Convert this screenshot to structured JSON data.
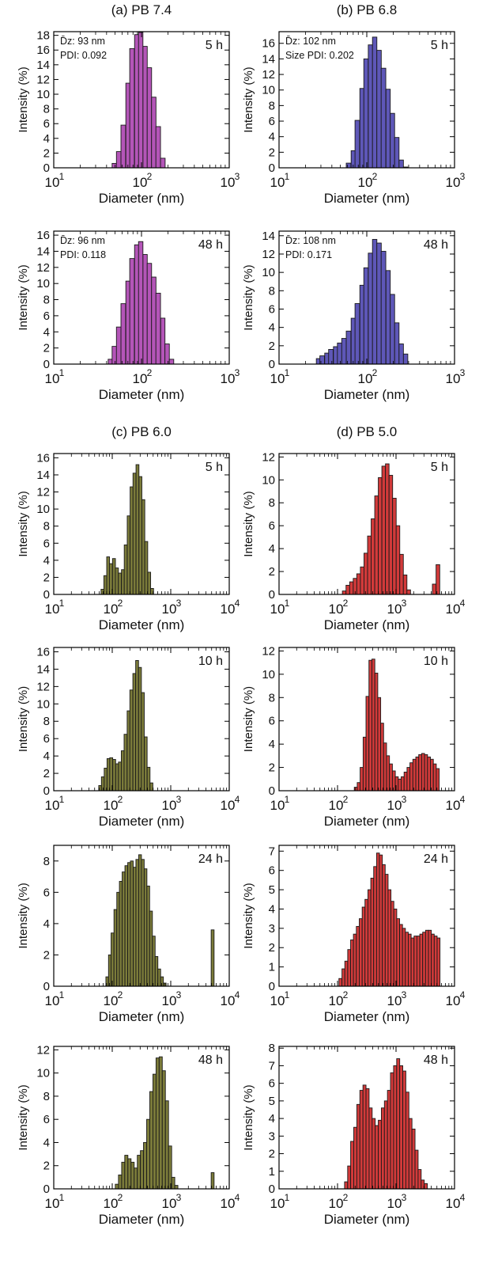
{
  "figure": {
    "background": "#ffffff"
  },
  "colors": {
    "magenta": "#b455b8",
    "blue": "#5e57b8",
    "olive": "#7b7b3a",
    "red": "#d23a3a"
  },
  "chart_data": [
    {
      "id": "a5",
      "type": "bar",
      "group_title": "(a) PB 7.4",
      "time_label": "5 h",
      "annotation_dz": "D̄z: 93 nm",
      "annotation_pdi": "PDI: 0.092",
      "xlabel": "Diameter (nm)",
      "ylabel": "Intensity (%)",
      "xscale": "log",
      "xlim": [
        10,
        1000
      ],
      "ylim": [
        0,
        18.5
      ],
      "xticks": [
        {
          "v": 10,
          "l": "10",
          "e": "1"
        },
        {
          "v": 100,
          "l": "10",
          "e": "2"
        },
        {
          "v": 1000,
          "l": "10",
          "e": "3"
        }
      ],
      "yticks": [
        0,
        2,
        4,
        6,
        8,
        10,
        12,
        14,
        16,
        18
      ],
      "color": "magenta",
      "x": [
        49,
        55,
        62,
        70,
        78,
        88,
        98,
        110,
        123,
        138,
        155,
        175
      ],
      "values": [
        0.6,
        2.2,
        5.8,
        11.5,
        16.2,
        18.1,
        18.4,
        16.5,
        13.6,
        9.6,
        5.6,
        1.3
      ]
    },
    {
      "id": "b5",
      "type": "bar",
      "group_title": "(b) PB 6.8",
      "time_label": "5 h",
      "annotation_dz": "D̄z: 102 nm",
      "annotation_pdi": "Size PDI: 0.202",
      "xlabel": "Diameter (nm)",
      "ylabel": "Intensity (%)",
      "xscale": "log",
      "xlim": [
        10,
        1000
      ],
      "ylim": [
        0,
        17.5
      ],
      "xticks": [
        {
          "v": 10,
          "l": "10",
          "e": "1"
        },
        {
          "v": 100,
          "l": "10",
          "e": "2"
        },
        {
          "v": 1000,
          "l": "10",
          "e": "3"
        }
      ],
      "yticks": [
        0,
        2,
        4,
        6,
        8,
        10,
        12,
        14,
        16
      ],
      "color": "blue",
      "x": [
        62,
        70,
        78,
        88,
        98,
        110,
        123,
        138,
        155,
        175,
        196,
        220,
        247,
        277
      ],
      "values": [
        0.6,
        2.2,
        6.1,
        10.2,
        14.0,
        15.8,
        16.8,
        15.1,
        12.8,
        10.1,
        7.0,
        3.9,
        1.0,
        0.1
      ]
    },
    {
      "id": "a48",
      "type": "bar",
      "group_title": "",
      "time_label": "48 h",
      "annotation_dz": "D̄z: 96 nm",
      "annotation_pdi": "PDI: 0.118",
      "xlabel": "Diameter (nm)",
      "ylabel": "Intensity (%)",
      "xscale": "log",
      "xlim": [
        10,
        1000
      ],
      "ylim": [
        0,
        16.5
      ],
      "xticks": [
        {
          "v": 10,
          "l": "10",
          "e": "1"
        },
        {
          "v": 100,
          "l": "10",
          "e": "2"
        },
        {
          "v": 1000,
          "l": "10",
          "e": "3"
        }
      ],
      "yticks": [
        0,
        2,
        4,
        6,
        8,
        10,
        12,
        14,
        16
      ],
      "color": "magenta",
      "x": [
        44,
        49,
        55,
        62,
        70,
        78,
        88,
        98,
        110,
        123,
        138,
        155,
        175,
        196,
        220
      ],
      "values": [
        0.6,
        2.2,
        4.6,
        7.5,
        10.3,
        13.1,
        14.8,
        15.2,
        13.6,
        12.5,
        10.8,
        8.8,
        5.7,
        2.5,
        0.6
      ]
    },
    {
      "id": "b48",
      "type": "bar",
      "group_title": "",
      "time_label": "48 h",
      "annotation_dz": "D̄z: 108 nm",
      "annotation_pdi": "PDI: 0.171",
      "xlabel": "Diameter (nm)",
      "ylabel": "Intensity (%)",
      "xscale": "log",
      "xlim": [
        10,
        1000
      ],
      "ylim": [
        0,
        14.5
      ],
      "xticks": [
        {
          "v": 10,
          "l": "10",
          "e": "1"
        },
        {
          "v": 100,
          "l": "10",
          "e": "2"
        },
        {
          "v": 1000,
          "l": "10",
          "e": "3"
        }
      ],
      "yticks": [
        0,
        2,
        4,
        6,
        8,
        10,
        12,
        14
      ],
      "color": "blue",
      "x": [
        28,
        31,
        35,
        39,
        44,
        49,
        55,
        62,
        70,
        78,
        88,
        98,
        110,
        123,
        138,
        155,
        175,
        196,
        220,
        247,
        277
      ],
      "values": [
        0.6,
        0.9,
        1.2,
        1.6,
        1.9,
        2.3,
        2.8,
        3.6,
        5.0,
        6.6,
        8.6,
        10.5,
        12.1,
        13.6,
        13.2,
        12.3,
        10.2,
        7.6,
        4.5,
        2.2,
        1.1
      ]
    },
    {
      "id": "c5",
      "type": "bar",
      "group_title": "(c) PB 6.0",
      "time_label": "5 h",
      "annotation_dz": "",
      "annotation_pdi": "",
      "xlabel": "Diameter (nm)",
      "ylabel": "Intensity (%)",
      "xscale": "log",
      "xlim": [
        10,
        10000
      ],
      "ylim": [
        0,
        16.5
      ],
      "xticks": [
        {
          "v": 10,
          "l": "10",
          "e": "1"
        },
        {
          "v": 100,
          "l": "10",
          "e": "2"
        },
        {
          "v": 1000,
          "l": "10",
          "e": "3"
        },
        {
          "v": 10000,
          "l": "10",
          "e": "4"
        }
      ],
      "yticks": [
        0,
        2,
        4,
        6,
        8,
        10,
        12,
        14,
        16
      ],
      "color": "olive",
      "x": [
        68,
        76,
        85,
        95,
        107,
        120,
        135,
        152,
        170,
        191,
        214,
        240,
        270,
        303,
        340,
        381,
        428,
        480
      ],
      "values": [
        0.6,
        2.2,
        4.4,
        3.6,
        4.2,
        3.1,
        2.5,
        2.9,
        5.8,
        9.2,
        12.6,
        14.2,
        15.2,
        13.8,
        11.1,
        6.2,
        2.6,
        0.7
      ]
    },
    {
      "id": "d5",
      "type": "bar",
      "group_title": "(d) PB 5.0",
      "time_label": "5 h",
      "annotation_dz": "",
      "annotation_pdi": "",
      "xlabel": "Diameter (nm)",
      "ylabel": "Intensity (%)",
      "xscale": "log",
      "xlim": [
        10,
        10000
      ],
      "ylim": [
        0,
        12.3
      ],
      "xticks": [
        {
          "v": 10,
          "l": "10",
          "e": "1"
        },
        {
          "v": 100,
          "l": "10",
          "e": "2"
        },
        {
          "v": 1000,
          "l": "10",
          "e": "3"
        },
        {
          "v": 10000,
          "l": "10",
          "e": "4"
        }
      ],
      "yticks": [
        0,
        2,
        4,
        6,
        8,
        10,
        12
      ],
      "color": "red",
      "x": [
        130,
        150,
        173,
        199,
        229,
        264,
        304,
        350,
        403,
        464,
        534,
        615,
        708,
        815,
        938,
        1080,
        1243,
        1431,
        1648,
        4500,
        5200
      ],
      "values": [
        0.3,
        0.8,
        1.1,
        1.4,
        1.8,
        2.4,
        3.6,
        5.1,
        6.6,
        8.6,
        10.2,
        11.2,
        11.4,
        10.4,
        8.4,
        6.0,
        3.5,
        1.7,
        0.4,
        0.9,
        2.6
      ]
    },
    {
      "id": "c10",
      "type": "bar",
      "group_title": "",
      "time_label": "10 h",
      "annotation_dz": "",
      "annotation_pdi": "",
      "xlabel": "Diameter (nm)",
      "ylabel": "Intensity (%)",
      "xscale": "log",
      "xlim": [
        10,
        10000
      ],
      "ylim": [
        0,
        16.5
      ],
      "xticks": [
        {
          "v": 10,
          "l": "10",
          "e": "1"
        },
        {
          "v": 100,
          "l": "10",
          "e": "2"
        },
        {
          "v": 1000,
          "l": "10",
          "e": "3"
        },
        {
          "v": 10000,
          "l": "10",
          "e": "4"
        }
      ],
      "yticks": [
        0,
        2,
        4,
        6,
        8,
        10,
        12,
        14,
        16
      ],
      "color": "olive",
      "x": [
        62,
        69,
        77,
        86,
        96,
        108,
        121,
        135,
        151,
        169,
        190,
        212,
        238,
        266,
        298,
        333,
        373,
        418,
        468
      ],
      "values": [
        0.6,
        1.6,
        2.6,
        3.7,
        3.8,
        3.6,
        3.1,
        3.3,
        4.6,
        6.5,
        9.2,
        11.6,
        13.5,
        15.0,
        14.2,
        11.3,
        6.2,
        2.7,
        0.9
      ]
    },
    {
      "id": "d10",
      "type": "bar",
      "group_title": "",
      "time_label": "10 h",
      "annotation_dz": "",
      "annotation_pdi": "",
      "xlabel": "Diameter (nm)",
      "ylabel": "Intensity (%)",
      "xscale": "log",
      "xlim": [
        10,
        10000
      ],
      "ylim": [
        0,
        12.3
      ],
      "xticks": [
        {
          "v": 10,
          "l": "10",
          "e": "1"
        },
        {
          "v": 100,
          "l": "10",
          "e": "2"
        },
        {
          "v": 1000,
          "l": "10",
          "e": "3"
        },
        {
          "v": 10000,
          "l": "10",
          "e": "4"
        }
      ],
      "yticks": [
        0,
        2,
        4,
        6,
        8,
        10,
        12
      ],
      "color": "red",
      "x": [
        205,
        230,
        258,
        290,
        325,
        365,
        410,
        460,
        516,
        579,
        650,
        729,
        818,
        918,
        1030,
        1156,
        1297,
        1455,
        1633,
        1832,
        2056,
        2307,
        2588,
        2904,
        3259,
        3657,
        4103,
        4604,
        5166
      ],
      "values": [
        0.3,
        0.7,
        2.0,
        4.6,
        8.1,
        11.2,
        11.3,
        10.1,
        8.0,
        5.8,
        4.1,
        3.0,
        2.3,
        1.7,
        1.2,
        1.0,
        1.2,
        1.6,
        2.0,
        2.4,
        2.7,
        2.9,
        3.1,
        3.2,
        3.1,
        2.9,
        2.7,
        2.3,
        1.9
      ]
    },
    {
      "id": "c24",
      "type": "bar",
      "group_title": "",
      "time_label": "24 h",
      "annotation_dz": "",
      "annotation_pdi": "",
      "xlabel": "Diameter (nm)",
      "ylabel": "Intensity (%)",
      "xscale": "log",
      "xlim": [
        10,
        10000
      ],
      "ylim": [
        0,
        9
      ],
      "xticks": [
        {
          "v": 10,
          "l": "10",
          "e": "1"
        },
        {
          "v": 100,
          "l": "10",
          "e": "2"
        },
        {
          "v": 1000,
          "l": "10",
          "e": "3"
        },
        {
          "v": 10000,
          "l": "10",
          "e": "4"
        }
      ],
      "yticks": [
        0,
        2,
        4,
        6,
        8
      ],
      "color": "olive",
      "x": [
        82,
        91,
        101,
        113,
        126,
        140,
        156,
        174,
        194,
        216,
        241,
        268,
        299,
        333,
        371,
        413,
        460,
        513,
        571,
        636,
        709,
        790,
        5200
      ],
      "values": [
        0.6,
        2.0,
        3.4,
        4.9,
        6.0,
        6.7,
        7.3,
        7.7,
        7.9,
        8.0,
        7.6,
        8.1,
        8.4,
        8.1,
        7.5,
        6.4,
        4.8,
        3.2,
        1.9,
        1.1,
        0.6,
        0.2,
        3.6
      ]
    },
    {
      "id": "d24",
      "type": "bar",
      "group_title": "",
      "time_label": "24 h",
      "annotation_dz": "",
      "annotation_pdi": "",
      "xlabel": "Diameter (nm)",
      "ylabel": "Intensity (%)",
      "xscale": "log",
      "xlim": [
        10,
        10000
      ],
      "ylim": [
        0,
        7.3
      ],
      "xticks": [
        {
          "v": 10,
          "l": "10",
          "e": "1"
        },
        {
          "v": 100,
          "l": "10",
          "e": "2"
        },
        {
          "v": 1000,
          "l": "10",
          "e": "3"
        },
        {
          "v": 10000,
          "l": "10",
          "e": "4"
        }
      ],
      "yticks": [
        0,
        1,
        2,
        3,
        4,
        5,
        6,
        7
      ],
      "color": "red",
      "x": [
        112,
        126,
        141,
        158,
        177,
        198,
        222,
        249,
        279,
        312,
        350,
        392,
        439,
        492,
        551,
        617,
        691,
        774,
        867,
        971,
        1088,
        1219,
        1365,
        1529,
        1713,
        1919,
        2150,
        2408,
        2698,
        3022,
        3386,
        3793,
        4249,
        4760,
        5332
      ],
      "values": [
        0.4,
        0.9,
        1.3,
        1.9,
        2.4,
        2.7,
        3.1,
        3.5,
        4.1,
        4.5,
        5.0,
        5.6,
        6.2,
        6.9,
        6.8,
        6.3,
        5.8,
        5.0,
        4.4,
        4.0,
        3.5,
        3.2,
        3.0,
        2.8,
        2.7,
        2.5,
        2.6,
        2.6,
        2.7,
        2.8,
        2.9,
        2.9,
        2.7,
        2.6,
        2.5
      ]
    },
    {
      "id": "c48",
      "type": "bar",
      "group_title": "",
      "time_label": "48 h",
      "annotation_dz": "",
      "annotation_pdi": "",
      "xlabel": "Diameter (nm)",
      "ylabel": "Intensity (%)",
      "xscale": "log",
      "xlim": [
        10,
        10000
      ],
      "ylim": [
        0,
        12.3
      ],
      "xticks": [
        {
          "v": 10,
          "l": "10",
          "e": "1"
        },
        {
          "v": 100,
          "l": "10",
          "e": "2"
        },
        {
          "v": 1000,
          "l": "10",
          "e": "3"
        },
        {
          "v": 10000,
          "l": "10",
          "e": "4"
        }
      ],
      "yticks": [
        0,
        2,
        4,
        6,
        8,
        10,
        12
      ],
      "color": "olive",
      "x": [
        120,
        136,
        154,
        174,
        197,
        223,
        252,
        285,
        322,
        364,
        412,
        466,
        527,
        596,
        674,
        762,
        862,
        975,
        1102,
        1246,
        5200
      ],
      "values": [
        0.4,
        1.2,
        2.3,
        2.9,
        2.6,
        2.3,
        1.8,
        2.9,
        3.3,
        4.0,
        6.0,
        8.4,
        9.9,
        11.3,
        11.4,
        10.2,
        7.6,
        3.7,
        1.0,
        0.3,
        1.4
      ]
    },
    {
      "id": "d48",
      "type": "bar",
      "group_title": "",
      "time_label": "48 h",
      "annotation_dz": "",
      "annotation_pdi": "",
      "xlabel": "Diameter (nm)",
      "ylabel": "Intensity (%)",
      "xscale": "log",
      "xlim": [
        10,
        10000
      ],
      "ylim": [
        0,
        8.1
      ],
      "xticks": [
        {
          "v": 10,
          "l": "10",
          "e": "1"
        },
        {
          "v": 100,
          "l": "10",
          "e": "2"
        },
        {
          "v": 1000,
          "l": "10",
          "e": "3"
        },
        {
          "v": 10000,
          "l": "10",
          "e": "4"
        }
      ],
      "yticks": [
        0,
        1,
        2,
        3,
        4,
        5,
        6,
        7,
        8
      ],
      "color": "red",
      "x": [
        140,
        158,
        178,
        201,
        227,
        256,
        289,
        326,
        368,
        415,
        468,
        528,
        596,
        672,
        758,
        855,
        965,
        1089,
        1228,
        1386,
        1563,
        1764,
        1990,
        2245,
        2533,
        2858,
        3225
      ],
      "values": [
        0.4,
        1.3,
        2.7,
        3.5,
        4.8,
        5.6,
        5.9,
        5.7,
        4.6,
        4.0,
        3.6,
        3.9,
        4.6,
        5.0,
        5.6,
        6.6,
        7.0,
        7.4,
        7.0,
        6.7,
        5.5,
        4.0,
        3.4,
        2.2,
        1.1,
        0.5,
        0.3
      ]
    }
  ]
}
